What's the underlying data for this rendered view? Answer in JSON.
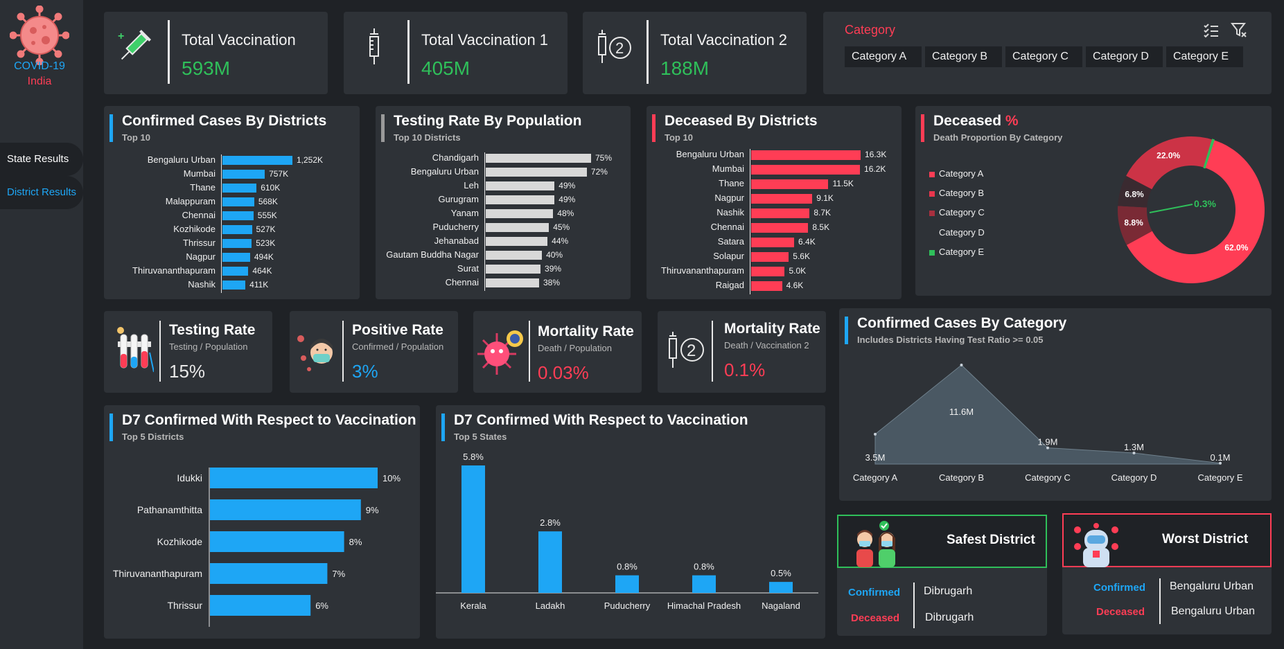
{
  "brand": {
    "line1": "COVID-19",
    "line2": "India"
  },
  "nav": {
    "state": "State Results",
    "district": "District Results"
  },
  "kpis": [
    {
      "title": "Total Vaccination",
      "value": "593M"
    },
    {
      "title": "Total Vaccination 1",
      "value": "405M"
    },
    {
      "title": "Total Vaccination 2",
      "value": "188M"
    }
  ],
  "category_filter": {
    "title": "Category",
    "chips": [
      "Category A",
      "Category B",
      "Category C",
      "Category D",
      "Category E"
    ]
  },
  "confirmed_districts": {
    "title": "Confirmed Cases By Districts",
    "subtitle": "Top 10",
    "rows": [
      {
        "label": "Bengaluru Urban",
        "value": 1252,
        "text": "1,252K"
      },
      {
        "label": "Mumbai",
        "value": 757,
        "text": "757K"
      },
      {
        "label": "Thane",
        "value": 610,
        "text": "610K"
      },
      {
        "label": "Malappuram",
        "value": 568,
        "text": "568K"
      },
      {
        "label": "Chennai",
        "value": 555,
        "text": "555K"
      },
      {
        "label": "Kozhikode",
        "value": 527,
        "text": "527K"
      },
      {
        "label": "Thrissur",
        "value": 523,
        "text": "523K"
      },
      {
        "label": "Nagpur",
        "value": 494,
        "text": "494K"
      },
      {
        "label": "Thiruvananthapuram",
        "value": 464,
        "text": "464K"
      },
      {
        "label": "Nashik",
        "value": 411,
        "text": "411K"
      }
    ]
  },
  "testing_rate": {
    "title": "Testing Rate By Population",
    "subtitle": "Top 10 Districts",
    "rows": [
      {
        "label": "Chandigarh",
        "value": 75,
        "text": "75%"
      },
      {
        "label": "Bengaluru Urban",
        "value": 72,
        "text": "72%"
      },
      {
        "label": "Leh",
        "value": 49,
        "text": "49%"
      },
      {
        "label": "Gurugram",
        "value": 49,
        "text": "49%"
      },
      {
        "label": "Yanam",
        "value": 48,
        "text": "48%"
      },
      {
        "label": "Puducherry",
        "value": 45,
        "text": "45%"
      },
      {
        "label": "Jehanabad",
        "value": 44,
        "text": "44%"
      },
      {
        "label": "Gautam Buddha Nagar",
        "value": 40,
        "text": "40%"
      },
      {
        "label": "Surat",
        "value": 39,
        "text": "39%"
      },
      {
        "label": "Chennai",
        "value": 38,
        "text": "38%"
      }
    ]
  },
  "deceased_districts": {
    "title": "Deceased By Districts",
    "subtitle": "Top 10",
    "rows": [
      {
        "label": "Bengaluru Urban",
        "value": 16.3,
        "text": "16.3K"
      },
      {
        "label": "Mumbai",
        "value": 16.2,
        "text": "16.2K"
      },
      {
        "label": "Thane",
        "value": 11.5,
        "text": "11.5K"
      },
      {
        "label": "Nagpur",
        "value": 9.1,
        "text": "9.1K"
      },
      {
        "label": "Nashik",
        "value": 8.7,
        "text": "8.7K"
      },
      {
        "label": "Chennai",
        "value": 8.5,
        "text": "8.5K"
      },
      {
        "label": "Satara",
        "value": 6.4,
        "text": "6.4K"
      },
      {
        "label": "Solapur",
        "value": 5.6,
        "text": "5.6K"
      },
      {
        "label": "Thiruvananthapuram",
        "value": 5.0,
        "text": "5.0K"
      },
      {
        "label": "Raigad",
        "value": 4.6,
        "text": "4.6K"
      }
    ]
  },
  "deceased_pct": {
    "title": "Deceased",
    "title_suffix": "%",
    "subtitle": "Death Proportion By Category",
    "slices": [
      {
        "label": "Category A",
        "value": 62.0,
        "text": "62.0%",
        "color": "#ff3d55"
      },
      {
        "label": "Category B",
        "value": 22.0,
        "text": "22.0%",
        "color": "#cc3346"
      },
      {
        "label": "Category C",
        "value": 8.8,
        "text": "8.8%",
        "color": "#7a2a35"
      },
      {
        "label": "Category D",
        "value": 6.8,
        "text": "6.8%",
        "color": "#3a2a30"
      },
      {
        "label": "Category E",
        "value": 0.3,
        "text": "0.3%",
        "color": "#2fbf5a"
      }
    ]
  },
  "rates": [
    {
      "title": "Testing Rate",
      "sub": "Testing  / Population",
      "value": "15%",
      "color": "#e8e8e8"
    },
    {
      "title": "Positive Rate",
      "sub": "Confirmed / Population",
      "value": "3%",
      "color": "#1ea6f5"
    },
    {
      "title": "Mortality Rate",
      "sub": "Death / Population",
      "value": "0.03%",
      "color": "#ff3d55"
    },
    {
      "title": "Mortality Rate",
      "sub": "Death /  Vaccination 2",
      "value": "0.1%",
      "color": "#ff3d55"
    }
  ],
  "confirmed_category": {
    "title": "Confirmed Cases By Category",
    "subtitle": "Includes Districts Having Test Ratio >= 0.05"
  },
  "d7_districts": {
    "title": "D7 Confirmed With Respect to Vaccination",
    "subtitle": "Top 5 Districts",
    "rows": [
      {
        "label": "Idukki",
        "value": 10,
        "text": "10%"
      },
      {
        "label": "Pathanamthitta",
        "value": 9,
        "text": "9%"
      },
      {
        "label": "Kozhikode",
        "value": 8,
        "text": "8%"
      },
      {
        "label": "Thiruvananthapuram",
        "value": 7,
        "text": "7%"
      },
      {
        "label": "Thrissur",
        "value": 6,
        "text": "6%"
      }
    ]
  },
  "d7_states": {
    "title": "D7 Confirmed With Respect to Vaccination",
    "subtitle": "Top 5 States"
  },
  "safest": {
    "title": "Safest District",
    "confirmed_label": "Confirmed",
    "confirmed_value": "Dibrugarh",
    "deceased_label": "Deceased",
    "deceased_value": "Dibrugarh"
  },
  "worst": {
    "title": "Worst District",
    "confirmed_label": "Confirmed",
    "confirmed_value": "Bengaluru Urban",
    "deceased_label": "Deceased",
    "deceased_value": "Bengaluru Urban"
  },
  "chart_data": [
    {
      "type": "bar",
      "orientation": "horizontal",
      "title": "Confirmed Cases By Districts",
      "categories": [
        "Bengaluru Urban",
        "Mumbai",
        "Thane",
        "Malappuram",
        "Chennai",
        "Kozhikode",
        "Thrissur",
        "Nagpur",
        "Thiruvananthapuram",
        "Nashik"
      ],
      "values": [
        1252,
        757,
        610,
        568,
        555,
        527,
        523,
        494,
        464,
        411
      ],
      "unit": "K"
    },
    {
      "type": "bar",
      "orientation": "horizontal",
      "title": "Testing Rate By Population",
      "categories": [
        "Chandigarh",
        "Bengaluru Urban",
        "Leh",
        "Gurugram",
        "Yanam",
        "Puducherry",
        "Jehanabad",
        "Gautam Buddha Nagar",
        "Surat",
        "Chennai"
      ],
      "values": [
        75,
        72,
        49,
        49,
        48,
        45,
        44,
        40,
        39,
        38
      ],
      "unit": "%"
    },
    {
      "type": "bar",
      "orientation": "horizontal",
      "title": "Deceased By Districts",
      "categories": [
        "Bengaluru Urban",
        "Mumbai",
        "Thane",
        "Nagpur",
        "Nashik",
        "Chennai",
        "Satara",
        "Solapur",
        "Thiruvananthapuram",
        "Raigad"
      ],
      "values": [
        16.3,
        16.2,
        11.5,
        9.1,
        8.7,
        8.5,
        6.4,
        5.6,
        5.0,
        4.6
      ],
      "unit": "K"
    },
    {
      "type": "pie",
      "title": "Deceased % - Death Proportion By Category",
      "categories": [
        "Category A",
        "Category B",
        "Category C",
        "Category D",
        "Category E"
      ],
      "values": [
        62.0,
        22.0,
        8.8,
        6.8,
        0.3
      ],
      "unit": "%"
    },
    {
      "type": "area",
      "title": "Confirmed Cases By Category",
      "categories": [
        "Category A",
        "Category B",
        "Category C",
        "Category D",
        "Category E"
      ],
      "values": [
        3.5,
        11.6,
        1.9,
        1.3,
        0.1
      ],
      "labels": [
        "3.5M",
        "11.6M",
        "1.9M",
        "1.3M",
        "0.1M"
      ],
      "unit": "M"
    },
    {
      "type": "bar",
      "orientation": "horizontal",
      "title": "D7 Confirmed With Respect to Vaccination - Top 5 Districts",
      "categories": [
        "Idukki",
        "Pathanamthitta",
        "Kozhikode",
        "Thiruvananthapuram",
        "Thrissur"
      ],
      "values": [
        10,
        9,
        8,
        7,
        6
      ],
      "unit": "%"
    },
    {
      "type": "bar",
      "orientation": "vertical",
      "title": "D7 Confirmed With Respect to Vaccination - Top 5 States",
      "categories": [
        "Kerala",
        "Ladakh",
        "Puducherry",
        "Himachal Pradesh",
        "Nagaland"
      ],
      "values": [
        5.8,
        2.8,
        0.8,
        0.8,
        0.5
      ],
      "labels": [
        "5.8%",
        "2.8%",
        "0.8%",
        "0.8%",
        "0.5%"
      ],
      "unit": "%"
    }
  ]
}
